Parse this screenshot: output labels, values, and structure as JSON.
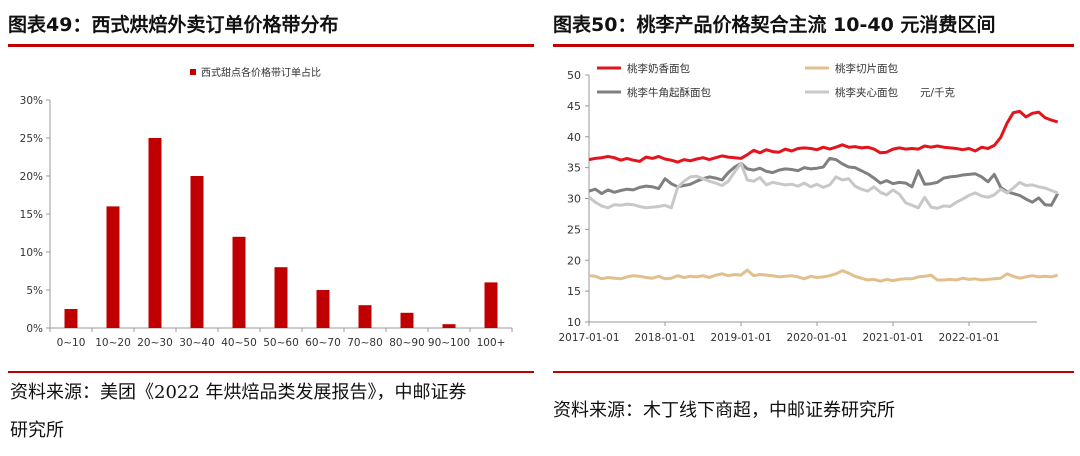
{
  "left": {
    "title": "图表49：西式烘焙外卖订单价格带分布",
    "source": "资料来源：美团《2022 年烘焙品类发展报告》，中邮证券研究所",
    "source_line1": "资料来源：美团《2022 年烘焙品类发展报告》，中邮证券",
    "source_line2": "研究所"
  },
  "right": {
    "title": "图表50：桃李产品价格契合主流 10-40 元消费区间",
    "source": "资料来源：木丁线下商超，中邮证券研究所",
    "unit_label": "元/千克"
  },
  "colors": {
    "accent": "#c00000",
    "bar": "#c00000",
    "s1": "#e3141b",
    "s2": "#e2c08d",
    "s3": "#808080",
    "s4": "#c8c8c8"
  },
  "chart_data": [
    {
      "type": "bar",
      "title": "图表49：西式烘焙外卖订单价格带分布",
      "legend": "西式甜点各价格带订单占比",
      "legend_position": "top",
      "categories": [
        "0~10",
        "10~20",
        "20~30",
        "30~40",
        "40~50",
        "50~60",
        "60~70",
        "70~80",
        "80~90",
        "90~100",
        "100+"
      ],
      "series": [
        {
          "name": "西式甜点各价格带订单占比",
          "values": [
            2.5,
            16,
            25,
            20,
            12,
            8,
            5,
            3,
            2,
            0.5,
            6
          ]
        }
      ],
      "ylim": [
        0,
        30
      ],
      "yticks": [
        "0%",
        "5%",
        "10%",
        "15%",
        "20%",
        "25%",
        "30%"
      ],
      "grid": false
    },
    {
      "type": "line",
      "title": "图表50：桃李产品价格契合主流 10-40 元消费区间",
      "x_start": "2017-01",
      "x_step": "month",
      "xticks": [
        "2017-01-01",
        "2018-01-01",
        "2019-01-01",
        "2020-01-01",
        "2021-01-01",
        "2022-01-01"
      ],
      "ylim": [
        10,
        50
      ],
      "yticks": [
        "10",
        "15",
        "20",
        "25",
        "30",
        "35",
        "40",
        "45",
        "50"
      ],
      "legend_position": "top",
      "grid": false,
      "series": [
        {
          "name": "桃李奶香面包",
          "values": [
            36.3,
            36.5,
            36.6,
            36.8,
            36.6,
            36.2,
            36.5,
            36.2,
            36.0,
            36.7,
            36.5,
            36.8,
            36.4,
            36.2,
            35.9,
            36.3,
            36.1,
            36.4,
            36.6,
            36.3,
            36.6,
            36.9,
            36.7,
            36.6,
            36.5,
            37.1,
            37.8,
            37.4,
            37.9,
            37.6,
            37.5,
            38.0,
            37.7,
            38.1,
            38.2,
            38.1,
            37.9,
            38.3,
            38.0,
            38.3,
            38.7,
            38.3,
            38.4,
            38.2,
            38.3,
            38.0,
            37.4,
            37.5,
            38.0,
            38.2,
            38.0,
            38.1,
            38.0,
            38.5,
            38.3,
            38.5,
            38.3,
            38.2,
            38.1,
            37.9,
            38.1,
            37.7,
            38.3,
            38.1,
            38.6,
            39.9,
            42.2,
            43.9,
            44.1,
            43.2,
            43.8,
            44.0,
            43.1,
            42.7,
            42.4
          ]
        },
        {
          "name": "桃李切片面包",
          "values": [
            17.5,
            17.4,
            17.0,
            17.2,
            17.1,
            17.0,
            17.3,
            17.5,
            17.4,
            17.2,
            17.1,
            17.4,
            17.0,
            17.1,
            17.5,
            17.2,
            17.4,
            17.3,
            17.5,
            17.2,
            17.6,
            17.8,
            17.5,
            17.7,
            17.6,
            18.4,
            17.5,
            17.7,
            17.6,
            17.5,
            17.3,
            17.4,
            17.5,
            17.3,
            17.0,
            17.4,
            17.2,
            17.3,
            17.5,
            17.8,
            18.3,
            17.9,
            17.4,
            17.1,
            16.8,
            16.9,
            16.6,
            16.9,
            16.7,
            16.9,
            17.0,
            17.0,
            17.3,
            17.4,
            17.6,
            16.8,
            16.8,
            16.9,
            16.8,
            17.1,
            16.9,
            17.0,
            16.8,
            16.9,
            17.0,
            17.1,
            17.8,
            17.4,
            17.1,
            17.3,
            17.5,
            17.3,
            17.4,
            17.3,
            17.6
          ]
        },
        {
          "name": "桃李牛角起酥面包",
          "values": [
            31.2,
            31.5,
            30.8,
            31.4,
            31.0,
            31.3,
            31.5,
            31.4,
            31.8,
            32.0,
            31.9,
            31.6,
            33.2,
            32.4,
            31.9,
            32.1,
            32.3,
            32.8,
            33.2,
            33.5,
            33.3,
            33.0,
            34.2,
            35.1,
            35.7,
            34.8,
            34.6,
            34.9,
            34.4,
            34.2,
            34.6,
            34.8,
            34.7,
            34.5,
            35.0,
            34.8,
            34.9,
            35.1,
            36.5,
            36.3,
            35.6,
            35.1,
            35.0,
            34.5,
            34.0,
            33.3,
            32.5,
            32.9,
            32.4,
            32.6,
            32.5,
            31.9,
            34.5,
            32.3,
            32.4,
            32.6,
            33.3,
            33.5,
            33.6,
            33.8,
            33.9,
            34.0,
            33.5,
            32.7,
            33.9,
            31.8,
            31.1,
            30.8,
            30.5,
            29.9,
            29.4,
            30.1,
            29.0,
            28.9,
            30.8
          ]
        },
        {
          "name": "桃李夹心面包",
          "values": [
            30.2,
            29.4,
            28.8,
            28.5,
            29.0,
            28.9,
            29.1,
            29.0,
            28.7,
            28.5,
            28.6,
            28.7,
            28.9,
            28.5,
            31.8,
            32.8,
            33.5,
            33.6,
            33.2,
            32.8,
            32.5,
            32.1,
            32.8,
            34.3,
            35.7,
            33.0,
            32.8,
            33.4,
            32.2,
            32.6,
            32.4,
            32.2,
            32.3,
            32.0,
            32.5,
            31.9,
            32.3,
            31.8,
            32.2,
            33.5,
            33.0,
            33.2,
            32.0,
            31.5,
            31.2,
            31.9,
            31.0,
            30.6,
            31.4,
            30.7,
            29.3,
            28.9,
            28.5,
            30.2,
            28.6,
            28.4,
            28.8,
            28.7,
            29.4,
            29.9,
            30.5,
            30.9,
            30.4,
            30.2,
            30.6,
            31.5,
            30.9,
            31.7,
            32.6,
            32.1,
            32.2,
            31.9,
            31.7,
            31.3,
            30.9
          ]
        }
      ]
    }
  ]
}
